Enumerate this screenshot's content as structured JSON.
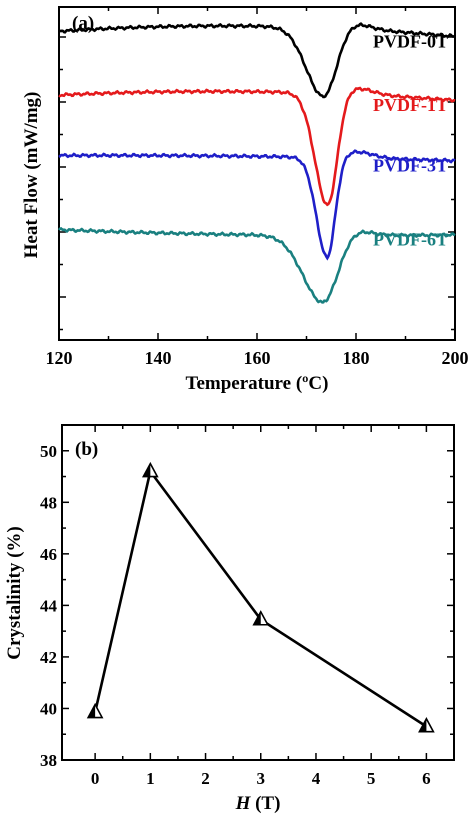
{
  "chart_data": [
    {
      "panel_label": "(a)",
      "type": "line",
      "xlabel": "Temperature (ºC)",
      "ylabel": "Heat Flow (mW/mg)",
      "xlim": [
        120,
        200
      ],
      "xticks": [
        120,
        140,
        160,
        180,
        200
      ],
      "yticks_labeled": false,
      "grid": false,
      "series": [
        {
          "name": "PVDF-0T",
          "color": "#000000",
          "baseline": 8.6,
          "peak_x": 173.5,
          "peak_depth": 2.0,
          "peak_width": 2.6,
          "drift": 0.45
        },
        {
          "name": "PVDF-1T",
          "color": "#e41a1c",
          "baseline": 6.75,
          "peak_x": 174.3,
          "peak_depth": 3.25,
          "peak_width": 1.9,
          "drift": 0.35
        },
        {
          "name": "PVDF-3T",
          "color": "#1f1fc8",
          "baseline": 5.0,
          "peak_x": 174.2,
          "peak_depth": 2.9,
          "peak_width": 1.6,
          "drift": 0.1
        },
        {
          "name": "PVDF-6T",
          "color": "#1a8080",
          "baseline": 2.85,
          "peak_x": 173.4,
          "peak_depth": 1.95,
          "peak_width": 3.0,
          "drift": -0.15
        }
      ]
    },
    {
      "panel_label": "(b)",
      "type": "line",
      "markers": "half-filled-triangle",
      "xlabel_italic": "H",
      "xlabel_rest": " (T)",
      "ylabel": "Crystalinity (%)",
      "xlim": [
        -0.6,
        6.5
      ],
      "ylim": [
        38,
        51
      ],
      "xticks": [
        0,
        1,
        2,
        3,
        4,
        5,
        6
      ],
      "yticks": [
        38,
        40,
        42,
        44,
        46,
        48,
        50
      ],
      "grid": false,
      "x": [
        0,
        1,
        3,
        6
      ],
      "y": [
        39.85,
        49.2,
        43.45,
        39.3
      ]
    }
  ]
}
